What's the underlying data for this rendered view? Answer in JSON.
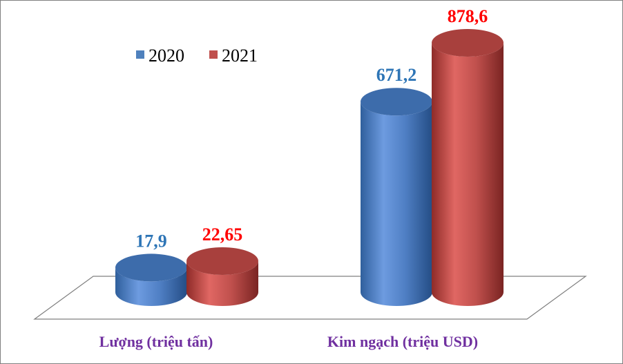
{
  "chart_data": {
    "type": "bar",
    "categories": [
      "Lượng (triệu tấn)",
      "Kim ngạch (triệu USD)"
    ],
    "series": [
      {
        "name": "2020",
        "values": [
          17.9,
          671.2
        ],
        "labels": [
          "17,9",
          "671,2"
        ],
        "color": "#4f81bd",
        "label_color": "#2e75b6"
      },
      {
        "name": "2021",
        "values": [
          22.65,
          878.6
        ],
        "labels": [
          "22,65",
          "878,6"
        ],
        "color": "#c0504d",
        "label_color": "#ff0000"
      }
    ],
    "legend_position": "top-left",
    "grid": false
  }
}
